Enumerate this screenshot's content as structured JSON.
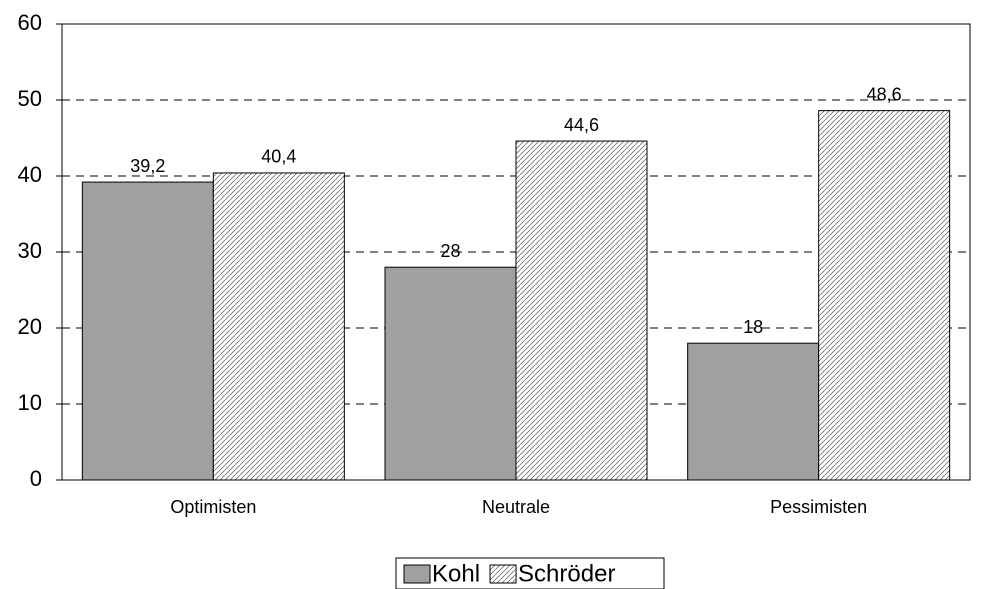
{
  "chart_data": {
    "type": "bar",
    "categories": [
      "Optimisten",
      "Neutrale",
      "Pessimisten"
    ],
    "series": [
      {
        "name": "Kohl",
        "color": "#a0a0a0",
        "values": [
          39.2,
          28,
          18
        ],
        "value_labels": [
          "39,2",
          "28",
          "18"
        ]
      },
      {
        "name": "Schröder",
        "color": "#ffffff",
        "pattern": "hatch",
        "values": [
          40.4,
          44.6,
          48.6
        ],
        "value_labels": [
          "40,4",
          "44,6",
          "48,6"
        ]
      }
    ],
    "ylim": [
      0,
      60
    ],
    "yticks": [
      0,
      10,
      20,
      30,
      40,
      50,
      60
    ],
    "grid": true,
    "legend": "bottom"
  }
}
